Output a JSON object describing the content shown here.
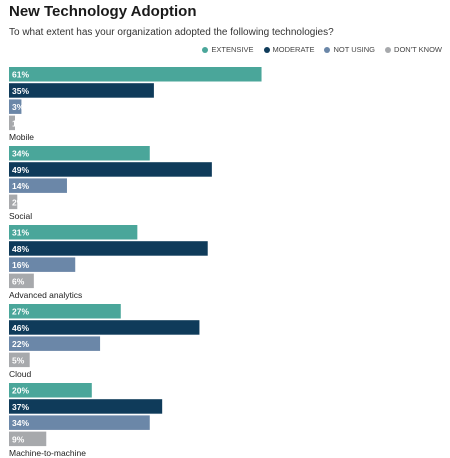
{
  "header": {
    "title": "New Technology Adoption",
    "subtitle": "To what extent has your organization adopted the following technologies?"
  },
  "chart_data": {
    "type": "bar",
    "orientation": "horizontal",
    "title": "New Technology Adoption",
    "subtitle": "To what extent has your organization adopted the following technologies?",
    "categories": [
      "Mobile",
      "Social",
      "Advanced analytics",
      "Cloud",
      "Machine-to-machine"
    ],
    "series": [
      {
        "name": "EXTENSIVE",
        "color": "#4aa69a",
        "values": [
          61,
          34,
          31,
          27,
          20
        ]
      },
      {
        "name": "MODERATE",
        "color": "#0f3b5a",
        "values": [
          35,
          49,
          48,
          46,
          37
        ]
      },
      {
        "name": "NOT USING",
        "color": "#6b87a8",
        "values": [
          3,
          14,
          16,
          22,
          34
        ]
      },
      {
        "name": "DON'T KNOW",
        "color": "#a7a9ac",
        "values": [
          1,
          2,
          6,
          5,
          9
        ]
      }
    ],
    "value_suffix": "%",
    "xlim": [
      0,
      100
    ],
    "grid": false,
    "legend_position": "top-right"
  }
}
